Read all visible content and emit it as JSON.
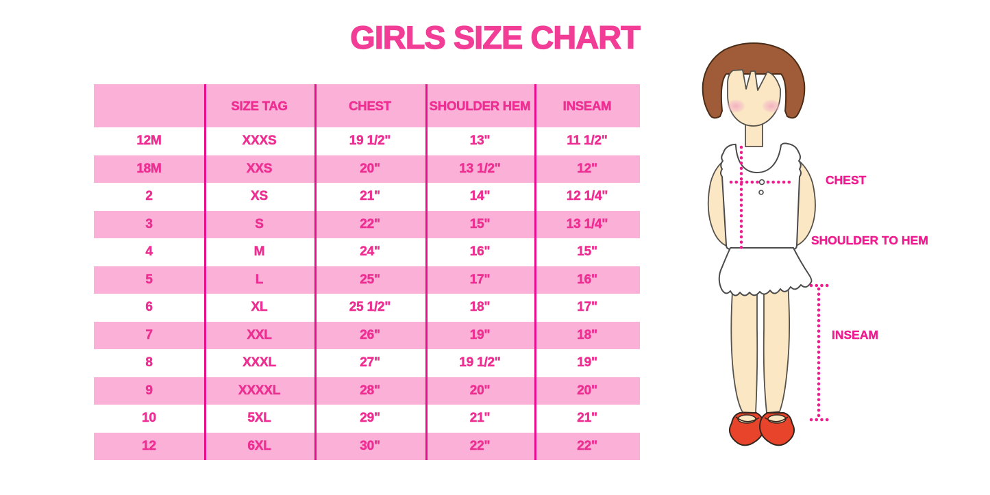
{
  "title": "GIRLS SIZE CHART",
  "chart_data": {
    "type": "table",
    "title": "GIRLS SIZE CHART",
    "columns": [
      "",
      "SIZE TAG",
      "CHEST",
      "SHOULDER HEM",
      "INSEAM"
    ],
    "rows": [
      [
        "12M",
        "XXXS",
        "19 1/2\"",
        "13\"",
        "11 1/2\""
      ],
      [
        "18M",
        "XXS",
        "20\"",
        "13 1/2\"",
        "12\""
      ],
      [
        "2",
        "XS",
        "21\"",
        "14\"",
        "12 1/4\""
      ],
      [
        "3",
        "S",
        "22\"",
        "15\"",
        "13 1/4\""
      ],
      [
        "4",
        "M",
        "24\"",
        "16\"",
        "15\""
      ],
      [
        "5",
        "L",
        "25\"",
        "17\"",
        "16\""
      ],
      [
        "6",
        "XL",
        "25 1/2\"",
        "18\"",
        "17\""
      ],
      [
        "7",
        "XXL",
        "26\"",
        "19\"",
        "18\""
      ],
      [
        "8",
        "XXXL",
        "27\"",
        "19 1/2\"",
        "19\""
      ],
      [
        "9",
        "XXXXL",
        "28\"",
        "20\"",
        "20\""
      ],
      [
        "10",
        "5XL",
        "29\"",
        "21\"",
        "21\""
      ],
      [
        "12",
        "6XL",
        "30\"",
        "22\"",
        "22\""
      ]
    ],
    "row_striping": "header pink, then alternating white/pink starting with white",
    "legend_position": "none",
    "grid": "magenta vertical column dividers only, no horizontal rules, no outer border"
  },
  "measurement_labels": {
    "chest": "CHEST",
    "shoulder_to_hem": "SHOULDER TO HEM",
    "inseam": "INSEAM"
  },
  "colors": {
    "background": "#ffffff",
    "title_pink": "#f23d97",
    "table_text_magenta": "#ee2f92",
    "row_pink": "#fbb0d8",
    "row_white": "#ffffff",
    "column_divider": "#ea0e8c",
    "measurement_line": "#ee1c8e",
    "hair_brown": "#a05b38",
    "hair_outline": "#4b2c16",
    "skin": "#fbe7c3",
    "cheek_pink": "#f2aebe",
    "shoe_red": "#e8432b"
  }
}
